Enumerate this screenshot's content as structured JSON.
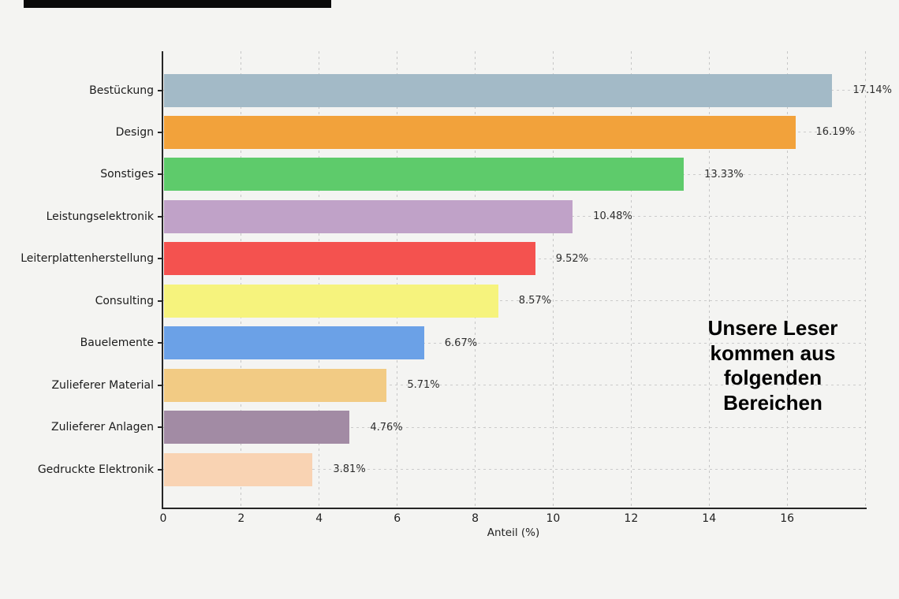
{
  "chart_data": {
    "type": "bar",
    "orientation": "horizontal",
    "title": "",
    "xlabel": "Anteil (%)",
    "xlim": [
      0,
      18
    ],
    "x_ticks": [
      0,
      2,
      4,
      6,
      8,
      10,
      12,
      14,
      16
    ],
    "x_gridlines": [
      2,
      4,
      6,
      8,
      10,
      12,
      14,
      16,
      18
    ],
    "grid": "dashed",
    "legend": "none",
    "categories": [
      "Bestückung",
      "Design",
      "Sonstiges",
      "Leistungselektronik",
      "Leiterplattenherstellung",
      "Consulting",
      "Bauelemente",
      "Zulieferer Material",
      "Zulieferer Anlagen",
      "Gedruckte Elektronik"
    ],
    "values": [
      17.14,
      16.19,
      13.33,
      10.48,
      9.52,
      8.57,
      6.67,
      5.71,
      4.76,
      3.81
    ],
    "value_labels": [
      "17.14%",
      "16.19%",
      "13.33%",
      "10.48%",
      "9.52%",
      "8.57%",
      "6.67%",
      "5.71%",
      "4.76%",
      "3.81%"
    ],
    "bar_colors": [
      "#a3bac7",
      "#f2a23b",
      "#5ecb6b",
      "#c0a2c8",
      "#f4524f",
      "#f6f37d",
      "#6ba1e7",
      "#f2cb84",
      "#a28ba4",
      "#f9d3b3"
    ]
  },
  "annotation": {
    "text": "Unsere Leser\nkommen aus\nfolgenden\nBereichen"
  },
  "colors": {
    "background": "#f4f4f2",
    "axis": "#262626",
    "grid_vertical": "#c6c6c6",
    "grid_horizontal": "#cbcbcb",
    "category_label": "#1c1c1c",
    "value_label": "#2e2e2e",
    "tick_label": "#1f1f1f",
    "annotation_text": "#000000",
    "top_bar": "#0a0a0a"
  }
}
